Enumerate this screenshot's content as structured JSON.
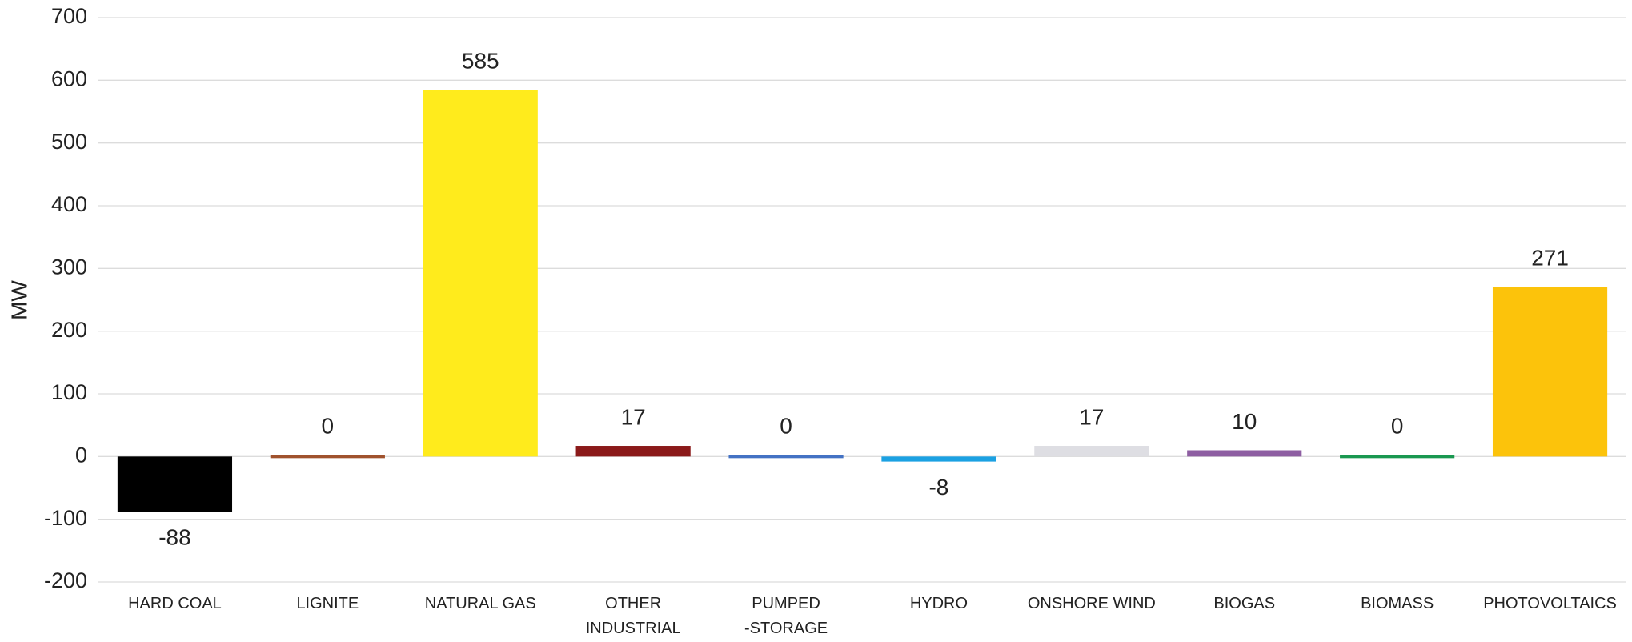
{
  "chart_data": {
    "type": "bar",
    "y_label": "MW",
    "categories": [
      "HARD COAL",
      "LIGNITE",
      "NATURAL GAS",
      "OTHER\nINDUSTRIAL",
      "PUMPED\n-STORAGE",
      "HYDRO",
      "ONSHORE WIND",
      "BIOGAS",
      "BIOMASS",
      "PHOTOVOLTAICS"
    ],
    "values": [
      -88,
      0,
      585,
      17,
      0,
      -8,
      17,
      10,
      0,
      271
    ],
    "colors": [
      "#000000",
      "#a0522d",
      "#ffeb1c",
      "#8b1a1a",
      "#4472c4",
      "#1ba1e2",
      "#dedee3",
      "#8e5ea2",
      "#1a9850",
      "#fcc30b"
    ],
    "ylim": [
      -200,
      700
    ],
    "yticks": [
      -200,
      -100,
      0,
      100,
      200,
      300,
      400,
      500,
      600,
      700
    ],
    "grid": true
  }
}
